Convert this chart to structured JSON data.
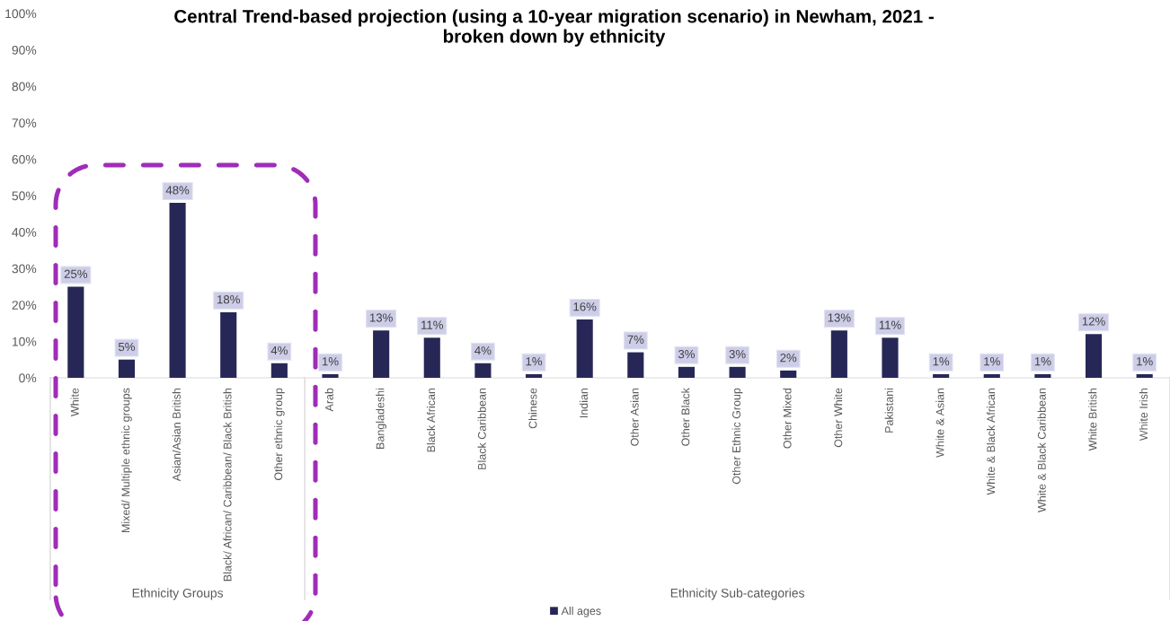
{
  "chart_data": {
    "type": "bar",
    "title": "Central Trend-based projection (using a 10-year migration scenario) in Newham, 2021 -\nbroken down by ethnicity",
    "categories": [
      "White",
      "Mixed/ Multiple ethnic groups",
      "Asian/Asian British",
      "Black/ African/ Caribbean/ Black British",
      "Other ethnic group",
      "Arab",
      "Bangladeshi",
      "Black African",
      "Black Caribbean",
      "Chinese",
      "Indian",
      "Other Asian",
      "Other Black",
      "Other Ethnic Group",
      "Other Mixed",
      "Other White",
      "Pakistani",
      "White & Asian",
      "White & Black African",
      "White & Black Caribbean",
      "White British",
      "White Irish"
    ],
    "series": [
      {
        "name": "All ages",
        "color": "#272757",
        "values": [
          25,
          5,
          48,
          18,
          4,
          1,
          13,
          11,
          4,
          1,
          16,
          7,
          3,
          3,
          2,
          13,
          11,
          1,
          1,
          1,
          12,
          1
        ],
        "value_labels": [
          "25%",
          "5%",
          "48%",
          "18%",
          "4%",
          "1%",
          "13%",
          "11%",
          "4%",
          "1%",
          "16%",
          "7%",
          "3%",
          "3%",
          "2%",
          "13%",
          "11%",
          "1%",
          "1%",
          "1%",
          "12%",
          "1%"
        ]
      }
    ],
    "ylim": [
      0,
      100
    ],
    "yticks": [
      {
        "value": 0,
        "label": "0%"
      },
      {
        "value": 10,
        "label": "10%"
      },
      {
        "value": 20,
        "label": "20%"
      },
      {
        "value": 30,
        "label": "30%"
      },
      {
        "value": 40,
        "label": "40%"
      },
      {
        "value": 50,
        "label": "50%"
      },
      {
        "value": 60,
        "label": "60%"
      },
      {
        "value": 70,
        "label": "70%"
      },
      {
        "value": 80,
        "label": "80%"
      },
      {
        "value": 90,
        "label": "90%"
      },
      {
        "value": 100,
        "label": "100%"
      }
    ],
    "annotations": [
      "Ethnicity Groups",
      "Ethnicity Sub-categories"
    ],
    "legend": "bottom"
  }
}
